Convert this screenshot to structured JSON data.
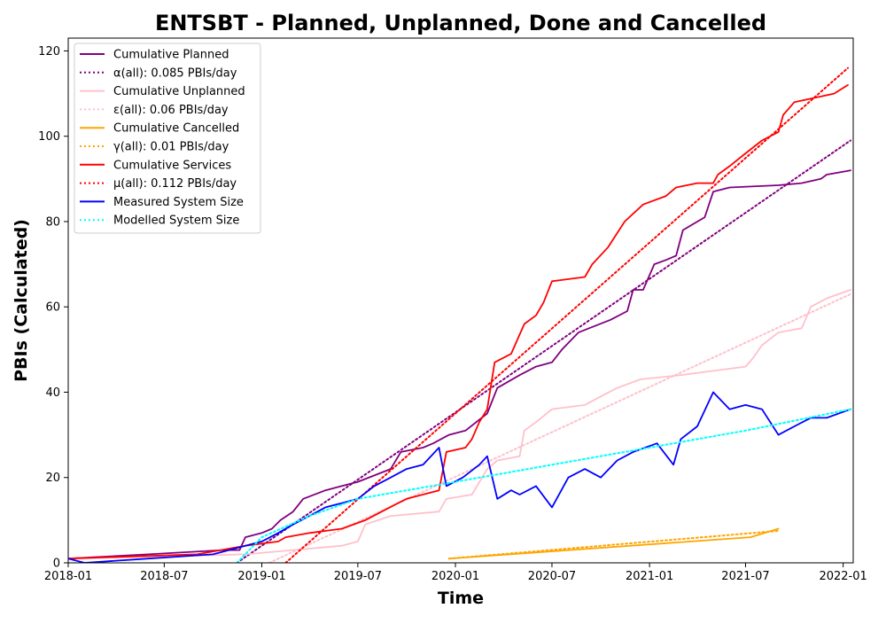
{
  "chart_data": {
    "type": "line",
    "title": "ENTSBT - Planned, Unplanned, Done  and Cancelled",
    "xlabel": "Time",
    "ylabel": "PBIs (Calculated)",
    "xlim": [
      "2018-01-01",
      "2022-01-20"
    ],
    "ylim": [
      0,
      123
    ],
    "x_ticks": [
      "2018-01",
      "2018-07",
      "2019-01",
      "2019-07",
      "2020-01",
      "2020-07",
      "2021-01",
      "2021-07",
      "2022-01"
    ],
    "y_ticks": [
      0,
      20,
      40,
      60,
      80,
      100,
      120
    ],
    "grid": false,
    "legend_position": "top-left",
    "series": [
      {
        "name": "Cumulative Planned",
        "style": "solid",
        "color": "#800080",
        "points": [
          [
            "2018-01-01",
            1
          ],
          [
            "2018-06-01",
            2
          ],
          [
            "2018-10-20",
            3
          ],
          [
            "2018-11-20",
            3
          ],
          [
            "2018-12-01",
            6
          ],
          [
            "2019-01-01",
            7
          ],
          [
            "2019-01-20",
            8
          ],
          [
            "2019-02-05",
            10
          ],
          [
            "2019-03-01",
            12
          ],
          [
            "2019-03-20",
            15
          ],
          [
            "2019-05-01",
            17
          ],
          [
            "2019-07-01",
            19
          ],
          [
            "2019-09-01",
            22
          ],
          [
            "2019-09-20",
            26
          ],
          [
            "2019-11-01",
            27
          ],
          [
            "2019-11-20",
            28
          ],
          [
            "2019-12-20",
            30
          ],
          [
            "2020-01-20",
            31
          ],
          [
            "2020-03-01",
            35
          ],
          [
            "2020-03-20",
            41
          ],
          [
            "2020-05-01",
            44
          ],
          [
            "2020-06-01",
            46
          ],
          [
            "2020-07-01",
            47
          ],
          [
            "2020-07-20",
            50
          ],
          [
            "2020-08-20",
            54
          ],
          [
            "2020-10-20",
            57
          ],
          [
            "2020-11-20",
            59
          ],
          [
            "2020-12-01",
            64
          ],
          [
            "2020-12-20",
            64
          ],
          [
            "2021-01-10",
            70
          ],
          [
            "2021-02-01",
            71
          ],
          [
            "2021-02-20",
            72
          ],
          [
            "2021-03-05",
            78
          ],
          [
            "2021-04-15",
            81
          ],
          [
            "2021-05-01",
            87
          ],
          [
            "2021-06-01",
            88
          ],
          [
            "2021-09-01",
            88.5
          ],
          [
            "2021-10-15",
            89
          ],
          [
            "2021-11-20",
            90
          ],
          [
            "2021-12-01",
            91
          ],
          [
            "2022-01-15",
            92
          ]
        ]
      },
      {
        "name": "α(all): 0.085 PBIs/day",
        "style": "dotted",
        "color": "#800080",
        "points": [
          [
            "2018-11-15",
            0
          ],
          [
            "2022-01-15",
            99
          ]
        ]
      },
      {
        "name": "Cumulative Unplanned",
        "style": "solid",
        "color": "#ffc0cb",
        "points": [
          [
            "2018-01-01",
            1
          ],
          [
            "2018-12-01",
            2
          ],
          [
            "2019-03-01",
            3
          ],
          [
            "2019-06-01",
            4
          ],
          [
            "2019-07-01",
            5
          ],
          [
            "2019-07-15",
            9
          ],
          [
            "2019-09-01",
            11
          ],
          [
            "2019-12-01",
            12
          ],
          [
            "2019-12-15",
            15
          ],
          [
            "2020-02-01",
            16
          ],
          [
            "2020-03-01",
            22
          ],
          [
            "2020-03-20",
            24
          ],
          [
            "2020-05-01",
            25
          ],
          [
            "2020-05-10",
            31
          ],
          [
            "2020-06-01",
            33
          ],
          [
            "2020-07-01",
            36
          ],
          [
            "2020-09-01",
            37
          ],
          [
            "2020-10-01",
            39
          ],
          [
            "2020-11-01",
            41
          ],
          [
            "2020-12-15",
            43
          ],
          [
            "2021-03-01",
            44
          ],
          [
            "2021-05-01",
            45
          ],
          [
            "2021-07-01",
            46
          ],
          [
            "2021-07-15",
            48
          ],
          [
            "2021-08-01",
            51
          ],
          [
            "2021-09-01",
            54
          ],
          [
            "2021-10-15",
            55
          ],
          [
            "2021-11-01",
            60
          ],
          [
            "2021-12-01",
            62
          ],
          [
            "2022-01-15",
            64
          ]
        ]
      },
      {
        "name": "ε(all): 0.06 PBIs/day",
        "style": "dotted",
        "color": "#ffc0cb",
        "points": [
          [
            "2019-01-15",
            0
          ],
          [
            "2022-01-15",
            63
          ]
        ]
      },
      {
        "name": "Cumulative Cancelled",
        "style": "solid",
        "color": "#ffa500",
        "points": [
          [
            "2019-12-20",
            1
          ],
          [
            "2021-07-10",
            6
          ],
          [
            "2021-09-01",
            8
          ]
        ]
      },
      {
        "name": "γ(all): 0.01 PBIs/day",
        "style": "dotted",
        "color": "#ffa500",
        "points": [
          [
            "2019-12-20",
            1
          ],
          [
            "2021-09-01",
            7.5
          ]
        ]
      },
      {
        "name": "Cumulative Services",
        "style": "solid",
        "color": "#ff0000",
        "points": [
          [
            "2018-01-01",
            1
          ],
          [
            "2018-09-01",
            2
          ],
          [
            "2018-12-01",
            4
          ],
          [
            "2019-02-01",
            5
          ],
          [
            "2019-02-15",
            6
          ],
          [
            "2019-04-01",
            7
          ],
          [
            "2019-06-01",
            8
          ],
          [
            "2019-07-15",
            10
          ],
          [
            "2019-08-15",
            12
          ],
          [
            "2019-09-15",
            14
          ],
          [
            "2019-10-01",
            15
          ],
          [
            "2019-12-01",
            17
          ],
          [
            "2019-12-15",
            26
          ],
          [
            "2020-01-20",
            27
          ],
          [
            "2020-02-01",
            29
          ],
          [
            "2020-02-15",
            33
          ],
          [
            "2020-03-01",
            36
          ],
          [
            "2020-03-15",
            47
          ],
          [
            "2020-04-15",
            49
          ],
          [
            "2020-05-10",
            56
          ],
          [
            "2020-06-01",
            58
          ],
          [
            "2020-06-15",
            61
          ],
          [
            "2020-07-01",
            66
          ],
          [
            "2020-09-01",
            67
          ],
          [
            "2020-09-15",
            70
          ],
          [
            "2020-10-15",
            74
          ],
          [
            "2020-11-15",
            80
          ],
          [
            "2020-12-20",
            84
          ],
          [
            "2021-02-01",
            86
          ],
          [
            "2021-02-20",
            88
          ],
          [
            "2021-04-01",
            89
          ],
          [
            "2021-05-01",
            89
          ],
          [
            "2021-05-10",
            91
          ],
          [
            "2021-06-01",
            93
          ],
          [
            "2021-07-01",
            96
          ],
          [
            "2021-08-01",
            99
          ],
          [
            "2021-09-01",
            101
          ],
          [
            "2021-09-10",
            105
          ],
          [
            "2021-10-01",
            108
          ],
          [
            "2021-12-15",
            110
          ],
          [
            "2022-01-10",
            112
          ]
        ]
      },
      {
        "name": "μ(all): 0.112 PBIs/day",
        "style": "dotted",
        "color": "#ff0000",
        "points": [
          [
            "2019-02-15",
            0
          ],
          [
            "2022-01-10",
            116
          ]
        ]
      },
      {
        "name": "Measured System Size",
        "style": "solid",
        "color": "#0000ff",
        "points": [
          [
            "2018-01-01",
            1
          ],
          [
            "2018-02-01",
            0
          ],
          [
            "2018-06-01",
            1
          ],
          [
            "2018-10-01",
            2
          ],
          [
            "2018-12-01",
            4
          ],
          [
            "2019-01-01",
            5
          ],
          [
            "2019-02-01",
            7
          ],
          [
            "2019-03-01",
            9
          ],
          [
            "2019-04-01",
            11
          ],
          [
            "2019-05-01",
            13
          ],
          [
            "2019-06-01",
            14
          ],
          [
            "2019-07-01",
            15
          ],
          [
            "2019-08-01",
            18
          ],
          [
            "2019-09-01",
            20
          ],
          [
            "2019-10-01",
            22
          ],
          [
            "2019-11-01",
            23
          ],
          [
            "2019-12-01",
            27
          ],
          [
            "2019-12-15",
            18
          ],
          [
            "2020-01-15",
            20
          ],
          [
            "2020-02-15",
            23
          ],
          [
            "2020-03-01",
            25
          ],
          [
            "2020-03-20",
            15
          ],
          [
            "2020-04-15",
            17
          ],
          [
            "2020-05-01",
            16
          ],
          [
            "2020-06-01",
            18
          ],
          [
            "2020-07-01",
            13
          ],
          [
            "2020-08-01",
            20
          ],
          [
            "2020-09-01",
            22
          ],
          [
            "2020-10-01",
            20
          ],
          [
            "2020-11-01",
            24
          ],
          [
            "2020-12-01",
            26
          ],
          [
            "2021-01-15",
            28
          ],
          [
            "2021-02-15",
            23
          ],
          [
            "2021-03-01",
            29
          ],
          [
            "2021-04-01",
            32
          ],
          [
            "2021-05-01",
            40
          ],
          [
            "2021-06-01",
            36
          ],
          [
            "2021-07-01",
            37
          ],
          [
            "2021-08-01",
            36
          ],
          [
            "2021-09-01",
            30
          ],
          [
            "2021-10-01",
            32
          ],
          [
            "2021-11-01",
            34
          ],
          [
            "2021-12-01",
            34
          ],
          [
            "2022-01-15",
            36
          ]
        ]
      },
      {
        "name": "Modelled System Size",
        "style": "dotted",
        "color": "#00ffff",
        "points": [
          [
            "2018-11-15",
            0
          ],
          [
            "2019-01-01",
            6
          ],
          [
            "2019-04-01",
            11
          ],
          [
            "2019-07-01",
            15
          ],
          [
            "2020-01-01",
            19
          ],
          [
            "2020-07-01",
            23
          ],
          [
            "2021-01-01",
            27
          ],
          [
            "2021-07-01",
            31
          ],
          [
            "2022-01-15",
            36
          ]
        ]
      }
    ]
  }
}
